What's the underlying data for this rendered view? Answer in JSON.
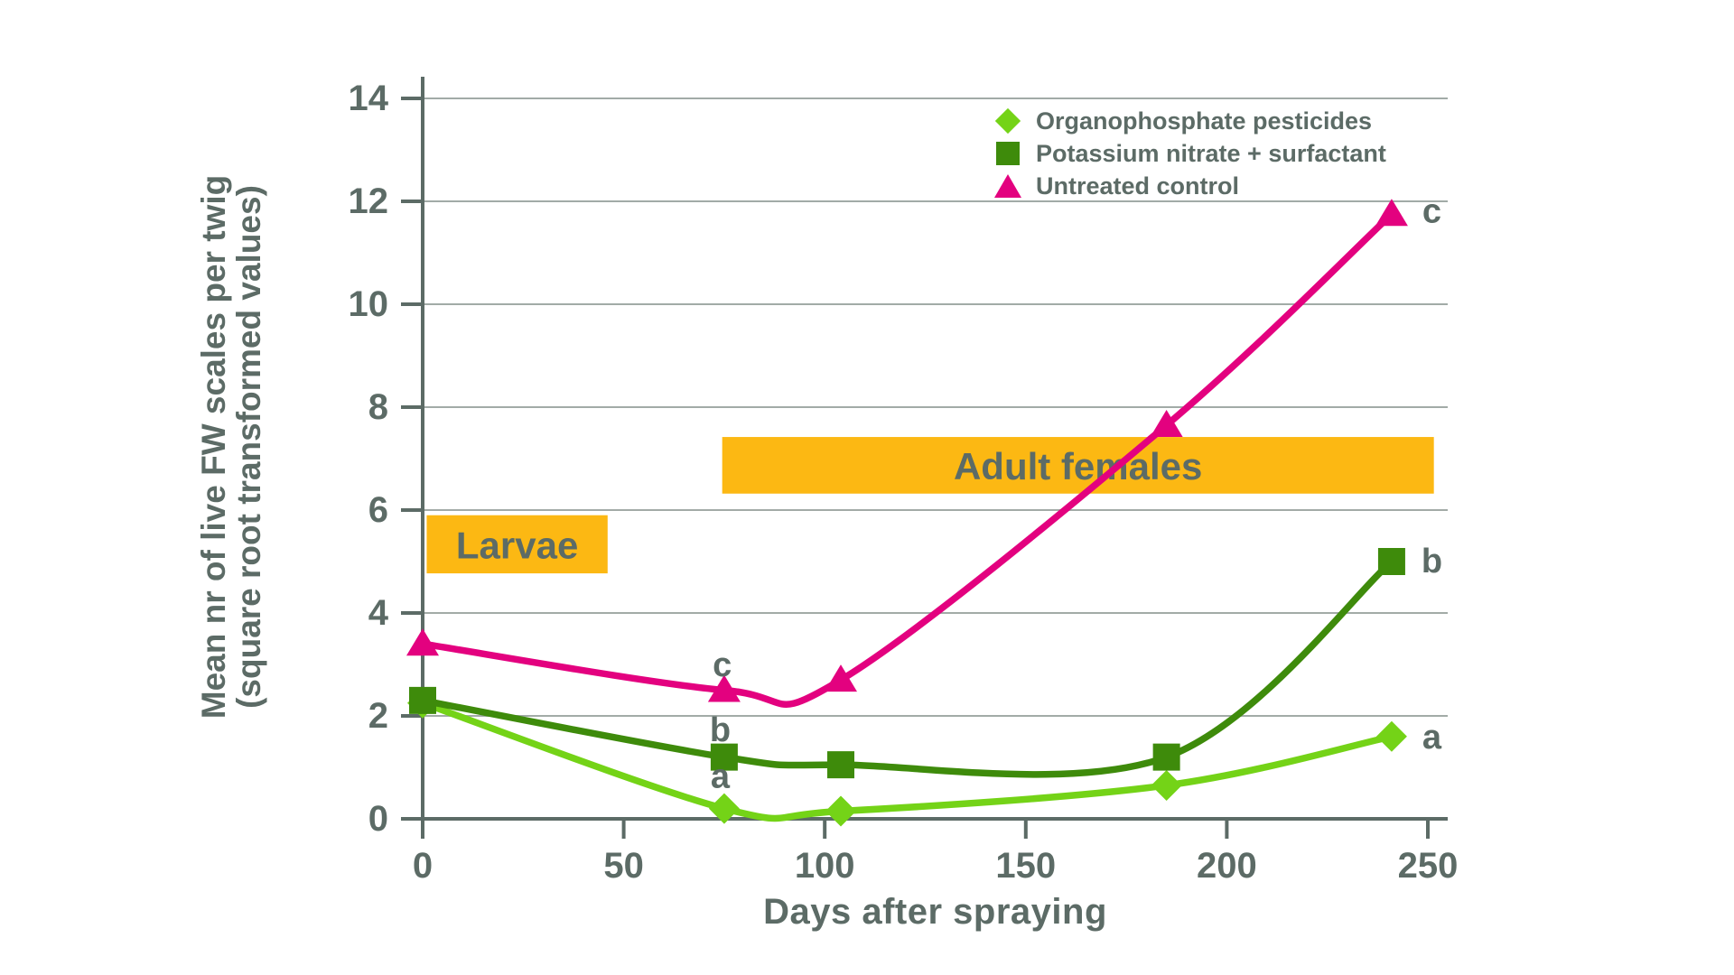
{
  "colors": {
    "background": "#ffffff",
    "text": "#5c6b66",
    "axis": "#5c6b66",
    "grid": "#a2aba7",
    "band": "#fcb813",
    "series_organophosphate": "#74d317",
    "series_potassium": "#3e8b0b",
    "series_untreated": "#e3017f"
  },
  "legend": {
    "items": [
      {
        "label": "Organophosphate pesticides",
        "marker": "diamond-icon",
        "color": "#74d317"
      },
      {
        "label": "Potassium nitrate + surfactant",
        "marker": "square-icon",
        "color": "#3e8b0b"
      },
      {
        "label": "Untreated control",
        "marker": "triangle-icon",
        "color": "#e3017f"
      }
    ]
  },
  "axes": {
    "x_title": "Days after spraying",
    "y_title_line1": "Mean nr of live FW scales per twig",
    "y_title_line2": "(square root transformed values)"
  },
  "chart_data": {
    "type": "line",
    "title": "",
    "xlabel": "Days after spraying",
    "ylabel": "Mean nr of live FW scales per twig (square root transformed values)",
    "x": [
      0,
      75,
      104,
      185,
      241
    ],
    "series": [
      {
        "name": "Organophosphate pesticides",
        "marker": "diamond",
        "color": "#74d317",
        "values": [
          2.25,
          0.2,
          0.15,
          0.65,
          1.6
        ]
      },
      {
        "name": "Potassium nitrate + surfactant",
        "marker": "square",
        "color": "#3e8b0b",
        "values": [
          2.3,
          1.2,
          1.05,
          1.2,
          5.0
        ]
      },
      {
        "name": "Untreated control",
        "marker": "triangle",
        "color": "#e3017f",
        "values": [
          3.4,
          2.5,
          2.7,
          7.65,
          11.75
        ]
      }
    ],
    "xlim": [
      0,
      255
    ],
    "ylim": [
      0,
      14
    ],
    "xticks": [
      0,
      50,
      100,
      150,
      200,
      250
    ],
    "yticks": [
      0,
      2,
      4,
      6,
      8,
      10,
      12,
      14
    ],
    "grid": "horizontal",
    "legend_position": "top-right-inside",
    "bands": [
      {
        "label": "Larvae",
        "x0": 1,
        "x1": 46,
        "y0": 4.77,
        "y1": 5.9
      },
      {
        "label": "Adult females",
        "x0": 74.5,
        "x1": 251.5,
        "y0": 6.32,
        "y1": 7.42
      }
    ],
    "annotations": [
      {
        "text": "c",
        "x": 74.5,
        "y": 2.98
      },
      {
        "text": "b",
        "x": 74.0,
        "y": 1.72
      },
      {
        "text": "a",
        "x": 74.0,
        "y": 0.82
      },
      {
        "text": "c",
        "x": 251.0,
        "y": 11.8
      },
      {
        "text": "b",
        "x": 251.0,
        "y": 5.0
      },
      {
        "text": "a",
        "x": 251.0,
        "y": 1.58
      }
    ]
  }
}
